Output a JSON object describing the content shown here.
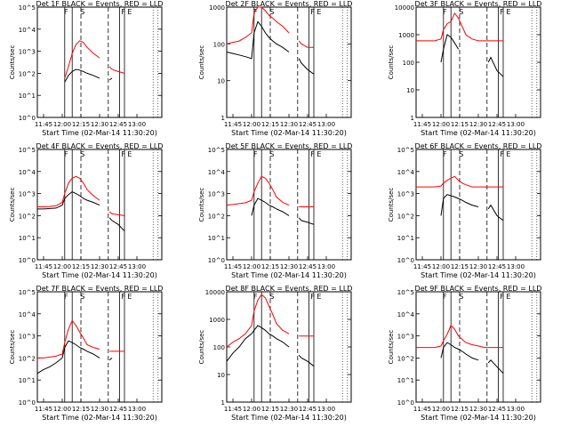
{
  "figure": {
    "x_tick_labels": [
      "11:45",
      "12:00",
      "12:15",
      "12:30",
      "12:45",
      "13:00"
    ],
    "xlabel": "Start Time (02-Mar-14 11:30:20)",
    "ylabel": "Counts/sec",
    "series_colors": {
      "events": "#000000",
      "lld": "#ff0000"
    },
    "marker_letters": [
      "F",
      "S",
      "F",
      "E"
    ]
  },
  "chart_data": [
    {
      "type": "line",
      "title": "Det 1F BLACK = Events, RED = LLD",
      "ylim": [
        1,
        100000
      ],
      "yscale": "log",
      "y_tick_labels": [
        "10^0",
        "10^1",
        "10^2",
        "10^3",
        "10^4",
        "10^5"
      ],
      "x": [
        "11:40",
        "11:45",
        "11:50",
        "11:55",
        "12:00",
        "12:02",
        "12:05",
        "12:08",
        "12:11",
        "12:14",
        "12:17",
        "12:20",
        "12:25",
        "12:30",
        "12:35",
        "12:38",
        "12:40",
        "12:45",
        "12:50"
      ],
      "series": [
        {
          "name": "Events",
          "values": [
            null,
            null,
            null,
            null,
            null,
            40,
            80,
            120,
            150,
            140,
            120,
            100,
            80,
            60,
            null,
            50,
            60,
            null,
            null
          ]
        },
        {
          "name": "LLD",
          "values": [
            null,
            null,
            null,
            null,
            null,
            60,
            200,
            800,
            2000,
            3000,
            2500,
            1500,
            800,
            500,
            null,
            200,
            150,
            120,
            100
          ]
        }
      ]
    },
    {
      "type": "line",
      "title": "Det 2F BLACK = Events, RED = LLD",
      "ylim": [
        1,
        1000
      ],
      "yscale": "log",
      "y_tick_labels": [
        "1",
        "10",
        "100",
        "1000"
      ],
      "x": [
        "11:40",
        "11:45",
        "11:50",
        "11:55",
        "12:00",
        "12:02",
        "12:05",
        "12:08",
        "12:11",
        "12:14",
        "12:17",
        "12:20",
        "12:25",
        "12:30",
        "12:35",
        "12:38",
        "12:40",
        "12:45",
        "12:50"
      ],
      "series": [
        {
          "name": "Events",
          "values": [
            60,
            55,
            50,
            45,
            40,
            200,
            400,
            300,
            200,
            150,
            120,
            100,
            80,
            60,
            null,
            40,
            30,
            20,
            15
          ]
        },
        {
          "name": "LLD",
          "values": [
            100,
            110,
            120,
            150,
            200,
            700,
            1000,
            1000,
            800,
            600,
            500,
            400,
            300,
            200,
            null,
            120,
            100,
            80,
            80
          ]
        }
      ]
    },
    {
      "type": "line",
      "title": "Det 3F BLACK = Events, RED = LLD",
      "ylim": [
        1,
        10000
      ],
      "yscale": "log",
      "y_tick_labels": [
        "1",
        "10",
        "100",
        "1000",
        "10000"
      ],
      "x": [
        "11:40",
        "11:45",
        "11:50",
        "11:55",
        "12:00",
        "12:02",
        "12:05",
        "12:08",
        "12:11",
        "12:14",
        "12:17",
        "12:20",
        "12:25",
        "12:30",
        "12:35",
        "12:38",
        "12:40",
        "12:45",
        "12:50"
      ],
      "series": [
        {
          "name": "Events",
          "values": [
            null,
            null,
            null,
            null,
            100,
            300,
            1000,
            800,
            500,
            300,
            null,
            null,
            null,
            null,
            null,
            100,
            150,
            50,
            30
          ]
        },
        {
          "name": "LLD",
          "values": [
            600,
            600,
            600,
            600,
            700,
            1500,
            2500,
            3000,
            6000,
            4000,
            2000,
            1000,
            700,
            600,
            600,
            600,
            600,
            600,
            600
          ]
        }
      ]
    },
    {
      "type": "line",
      "title": "Det 4F BLACK = Events, RED = LLD",
      "ylim": [
        1,
        100000
      ],
      "yscale": "log",
      "y_tick_labels": [
        "10^0",
        "10^1",
        "10^2",
        "10^3",
        "10^4",
        "10^5"
      ],
      "x": [
        "11:40",
        "11:45",
        "11:50",
        "11:55",
        "12:00",
        "12:02",
        "12:05",
        "12:08",
        "12:11",
        "12:14",
        "12:17",
        "12:20",
        "12:25",
        "12:30",
        "12:35",
        "12:38",
        "12:40",
        "12:45",
        "12:50"
      ],
      "series": [
        {
          "name": "Events",
          "values": [
            200,
            200,
            210,
            220,
            300,
            600,
            900,
            1200,
            1000,
            800,
            600,
            500,
            400,
            300,
            null,
            80,
            60,
            40,
            20
          ]
        },
        {
          "name": "LLD",
          "values": [
            250,
            250,
            260,
            280,
            400,
            1000,
            3000,
            5000,
            6000,
            5000,
            3000,
            1500,
            800,
            500,
            null,
            150,
            120,
            110,
            100
          ]
        }
      ]
    },
    {
      "type": "line",
      "title": "Det 5F BLACK = Events, RED = LLD",
      "ylim": [
        1,
        100000
      ],
      "yscale": "log",
      "y_tick_labels": [
        "10^0",
        "10^1",
        "10^2",
        "10^3",
        "10^4",
        "10^5"
      ],
      "x": [
        "11:40",
        "11:45",
        "11:50",
        "11:55",
        "12:00",
        "12:02",
        "12:05",
        "12:08",
        "12:11",
        "12:14",
        "12:17",
        "12:20",
        "12:25",
        "12:30",
        "12:35",
        "12:38",
        "12:40",
        "12:45",
        "12:50"
      ],
      "series": [
        {
          "name": "Events",
          "values": [
            null,
            null,
            null,
            null,
            100,
            300,
            600,
            500,
            400,
            300,
            250,
            200,
            150,
            100,
            null,
            80,
            60,
            50,
            40
          ]
        },
        {
          "name": "LLD",
          "values": [
            300,
            320,
            350,
            380,
            500,
            1200,
            3000,
            6000,
            5000,
            3000,
            1500,
            700,
            400,
            300,
            null,
            250,
            250,
            250,
            250
          ]
        }
      ]
    },
    {
      "type": "line",
      "title": "Det 6F BLACK = Events, RED = LLD",
      "ylim": [
        1,
        100000
      ],
      "yscale": "log",
      "y_tick_labels": [
        "10^0",
        "10^1",
        "10^2",
        "10^3",
        "10^4",
        "10^5"
      ],
      "x": [
        "11:40",
        "11:45",
        "11:50",
        "11:55",
        "12:00",
        "12:02",
        "12:05",
        "12:08",
        "12:11",
        "12:14",
        "12:17",
        "12:20",
        "12:25",
        "12:30",
        "12:35",
        "12:38",
        "12:40",
        "12:45",
        "12:50"
      ],
      "series": [
        {
          "name": "Events",
          "values": [
            null,
            null,
            null,
            null,
            100,
            600,
            900,
            800,
            700,
            600,
            500,
            400,
            300,
            250,
            null,
            200,
            300,
            100,
            60
          ]
        },
        {
          "name": "LLD",
          "values": [
            2000,
            2000,
            2000,
            2000,
            2200,
            3000,
            4000,
            5000,
            6000,
            4000,
            3000,
            2500,
            2000,
            2000,
            2000,
            2000,
            2000,
            2000,
            2000
          ]
        }
      ]
    },
    {
      "type": "line",
      "title": "Det 7F BLACK = Events, RED = LLD",
      "ylim": [
        1,
        100000
      ],
      "yscale": "log",
      "y_tick_labels": [
        "10^0",
        "10^1",
        "10^2",
        "10^3",
        "10^4",
        "10^5"
      ],
      "x": [
        "11:40",
        "11:45",
        "11:50",
        "11:55",
        "12:00",
        "12:02",
        "12:05",
        "12:08",
        "12:11",
        "12:14",
        "12:17",
        "12:20",
        "12:25",
        "12:30",
        "12:35",
        "12:38",
        "12:40",
        "12:45",
        "12:50"
      ],
      "series": [
        {
          "name": "Events",
          "values": [
            20,
            30,
            40,
            60,
            100,
            300,
            600,
            500,
            400,
            300,
            250,
            200,
            150,
            100,
            null,
            80,
            100,
            null,
            null
          ]
        },
        {
          "name": "LLD",
          "values": [
            100,
            100,
            110,
            120,
            150,
            500,
            2000,
            5000,
            3000,
            1500,
            800,
            400,
            300,
            250,
            null,
            200,
            200,
            200,
            200
          ]
        }
      ]
    },
    {
      "type": "line",
      "title": "Det 8F BLACK = Events, RED = LLD",
      "ylim": [
        1,
        10000
      ],
      "yscale": "log",
      "y_tick_labels": [
        "1",
        "10",
        "100",
        "1000",
        "10000"
      ],
      "x": [
        "11:40",
        "11:45",
        "11:50",
        "11:55",
        "12:00",
        "12:02",
        "12:05",
        "12:08",
        "12:11",
        "12:14",
        "12:17",
        "12:20",
        "12:25",
        "12:30",
        "12:35",
        "12:38",
        "12:40",
        "12:45",
        "12:50"
      ],
      "series": [
        {
          "name": "Events",
          "values": [
            30,
            60,
            100,
            200,
            300,
            400,
            600,
            500,
            400,
            300,
            250,
            200,
            150,
            100,
            null,
            50,
            40,
            30,
            20
          ]
        },
        {
          "name": "LLD",
          "values": [
            100,
            150,
            200,
            300,
            600,
            2000,
            5000,
            8000,
            6000,
            3000,
            1500,
            700,
            400,
            300,
            null,
            250,
            250,
            250,
            250
          ]
        }
      ]
    },
    {
      "type": "line",
      "title": "Det 9F BLACK = Events, RED = LLD",
      "ylim": [
        1,
        100000
      ],
      "yscale": "log",
      "y_tick_labels": [
        "10^0",
        "10^1",
        "10^2",
        "10^3",
        "10^4",
        "10^5"
      ],
      "x": [
        "11:40",
        "11:45",
        "11:50",
        "11:55",
        "12:00",
        "12:02",
        "12:05",
        "12:08",
        "12:11",
        "12:14",
        "12:17",
        "12:20",
        "12:25",
        "12:30",
        "12:35",
        "12:38",
        "12:40",
        "12:45",
        "12:50"
      ],
      "series": [
        {
          "name": "Events",
          "values": [
            null,
            null,
            null,
            null,
            100,
            300,
            500,
            400,
            300,
            250,
            200,
            150,
            100,
            80,
            null,
            60,
            80,
            40,
            20
          ]
        },
        {
          "name": "LLD",
          "values": [
            300,
            300,
            300,
            300,
            350,
            600,
            1200,
            3000,
            2000,
            1000,
            700,
            500,
            400,
            350,
            300,
            300,
            300,
            300,
            300
          ]
        }
      ]
    }
  ]
}
